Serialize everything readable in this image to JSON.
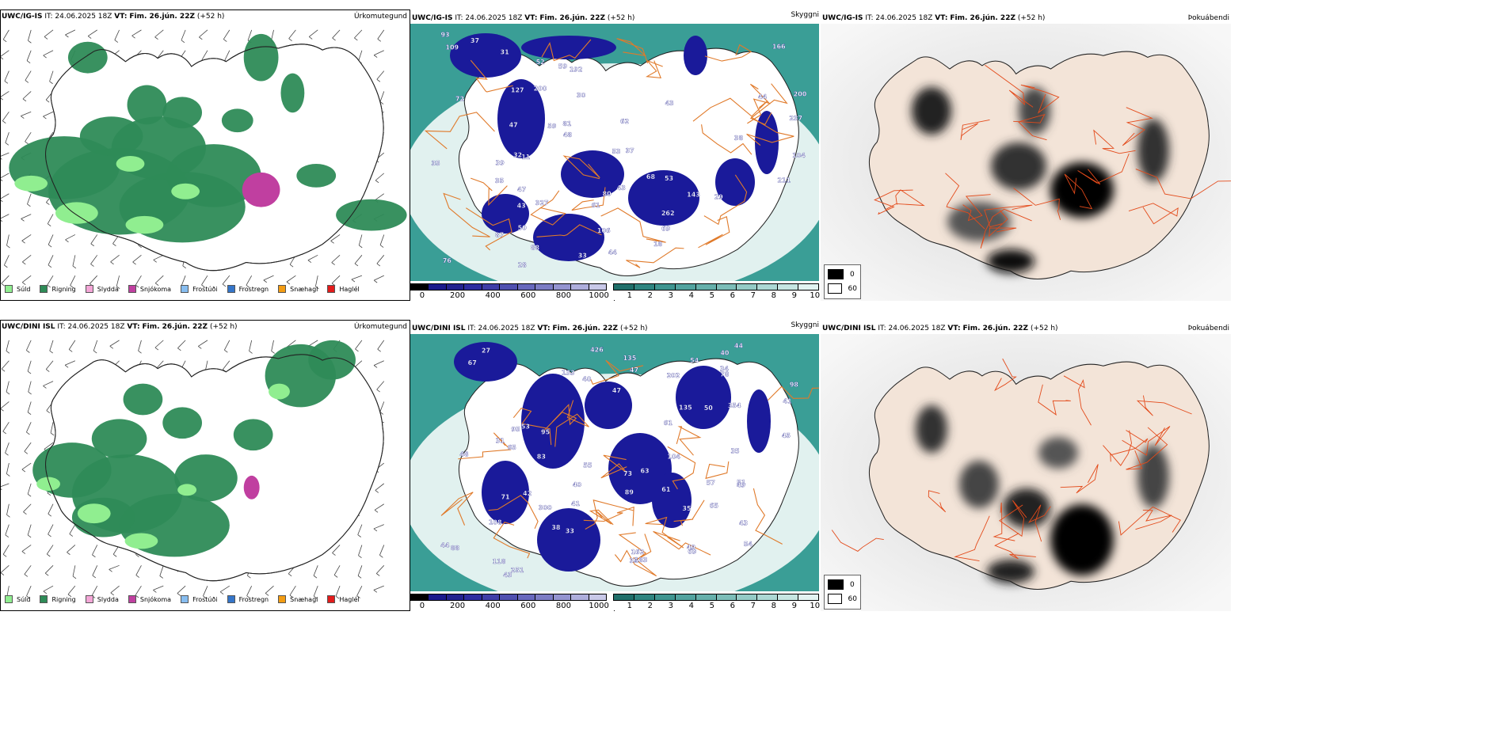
{
  "rows": [
    {
      "model": "UWC/IG-IS",
      "it_label": "IT:",
      "it_value": "24.06.2025 18Z",
      "vt_label": "VT:",
      "vt_value": "Fim. 26.jún. 22Z",
      "lead": "(+52 h)",
      "panel_names": [
        "Úrkomutegund",
        "Skyggni",
        "Þokuábendi"
      ],
      "snow_labels": [
        "109",
        "93",
        "35",
        "166",
        "200",
        "262",
        "192",
        "327",
        "76",
        "143",
        "43",
        "37",
        "28",
        "35",
        "80",
        "59",
        "61",
        "87",
        "200",
        "81",
        "237",
        "106",
        "88",
        "32",
        "39",
        "43",
        "47",
        "29",
        "33",
        "59",
        "68",
        "52",
        "44",
        "211",
        "53",
        "47",
        "31",
        "48",
        "69",
        "43",
        "127",
        "44",
        "53",
        "30",
        "37",
        "62",
        "50",
        "38",
        "18",
        "72",
        "104",
        "11"
      ]
    },
    {
      "model": "UWC/DINI ISL",
      "it_label": "IT:",
      "it_value": "24.06.2025 18Z",
      "vt_label": "VT:",
      "vt_value": "Fim. 26.jún. 22Z",
      "lead": "(+52 h)",
      "panel_names": [
        "Úrkomutegund",
        "Skyggni",
        "Þokuábendi"
      ],
      "snow_labels": [
        "183",
        "33",
        "95",
        "354",
        "426",
        "251",
        "51",
        "41",
        "34",
        "41",
        "47",
        "133",
        "73",
        "42",
        "53",
        "54",
        "49",
        "78",
        "83",
        "61",
        "38",
        "108",
        "98",
        "71",
        "40",
        "65",
        "54",
        "89",
        "104",
        "95",
        "69",
        "61",
        "88",
        "202",
        "47",
        "35",
        "35",
        "63",
        "44",
        "118",
        "43",
        "44",
        "40",
        "49",
        "300",
        "65",
        "55",
        "50",
        "162",
        "135",
        "135",
        "67",
        "35",
        "45",
        "57",
        "31",
        "40",
        "43",
        "48",
        "27"
      ]
    }
  ],
  "ptype_legend": [
    {
      "label": "Súld",
      "color": "#90ee90"
    },
    {
      "label": "Rigning",
      "color": "#2e8b57"
    },
    {
      "label": "Slydda",
      "color": "#f4a6d7"
    },
    {
      "label": "Snjókoma",
      "color": "#c03fa0"
    },
    {
      "label": "Frostúði",
      "color": "#87bdf0"
    },
    {
      "label": "Frostregn",
      "color": "#3575c9"
    },
    {
      "label": "Snæhagl",
      "color": "#f39c12"
    },
    {
      "label": "Haglél",
      "color": "#e31b1b"
    }
  ],
  "height_bar": {
    "unit": "m",
    "ticks": [
      "0",
      "200",
      "400",
      "600",
      "800",
      "1000"
    ],
    "colors": [
      "#000000",
      "#1a1a8c",
      "#23238f",
      "#2d2da0",
      "#3f3fa8",
      "#5050b0",
      "#6868bd",
      "#7c7cc4",
      "#9494d0",
      "#aeaedc",
      "#c8c8e8"
    ]
  },
  "vis_bar": {
    "unit": "km",
    "ticks": [
      "1",
      "2",
      "3",
      "4",
      "5",
      "6",
      "7",
      "8",
      "9",
      "10"
    ],
    "colors": [
      "#1f6f6a",
      "#2f8580",
      "#3f9590",
      "#52a39f",
      "#66b0ab",
      "#7cbdb8",
      "#94cbc6",
      "#acd8d4",
      "#c6e6e2",
      "#e2f3f1"
    ]
  },
  "fog_legend": [
    {
      "value": "0",
      "color": "#000000"
    },
    {
      "value": "60",
      "color": "#ffffff"
    }
  ],
  "colors": {
    "rain": "#2e8b57",
    "drizzle": "#90ee90",
    "snow": "#c03fa0",
    "low_vis": "#1a1a9a",
    "sea_vis": "#3a9e96",
    "roads": "#e07a2a",
    "land_tint": "#f3e4d8"
  }
}
